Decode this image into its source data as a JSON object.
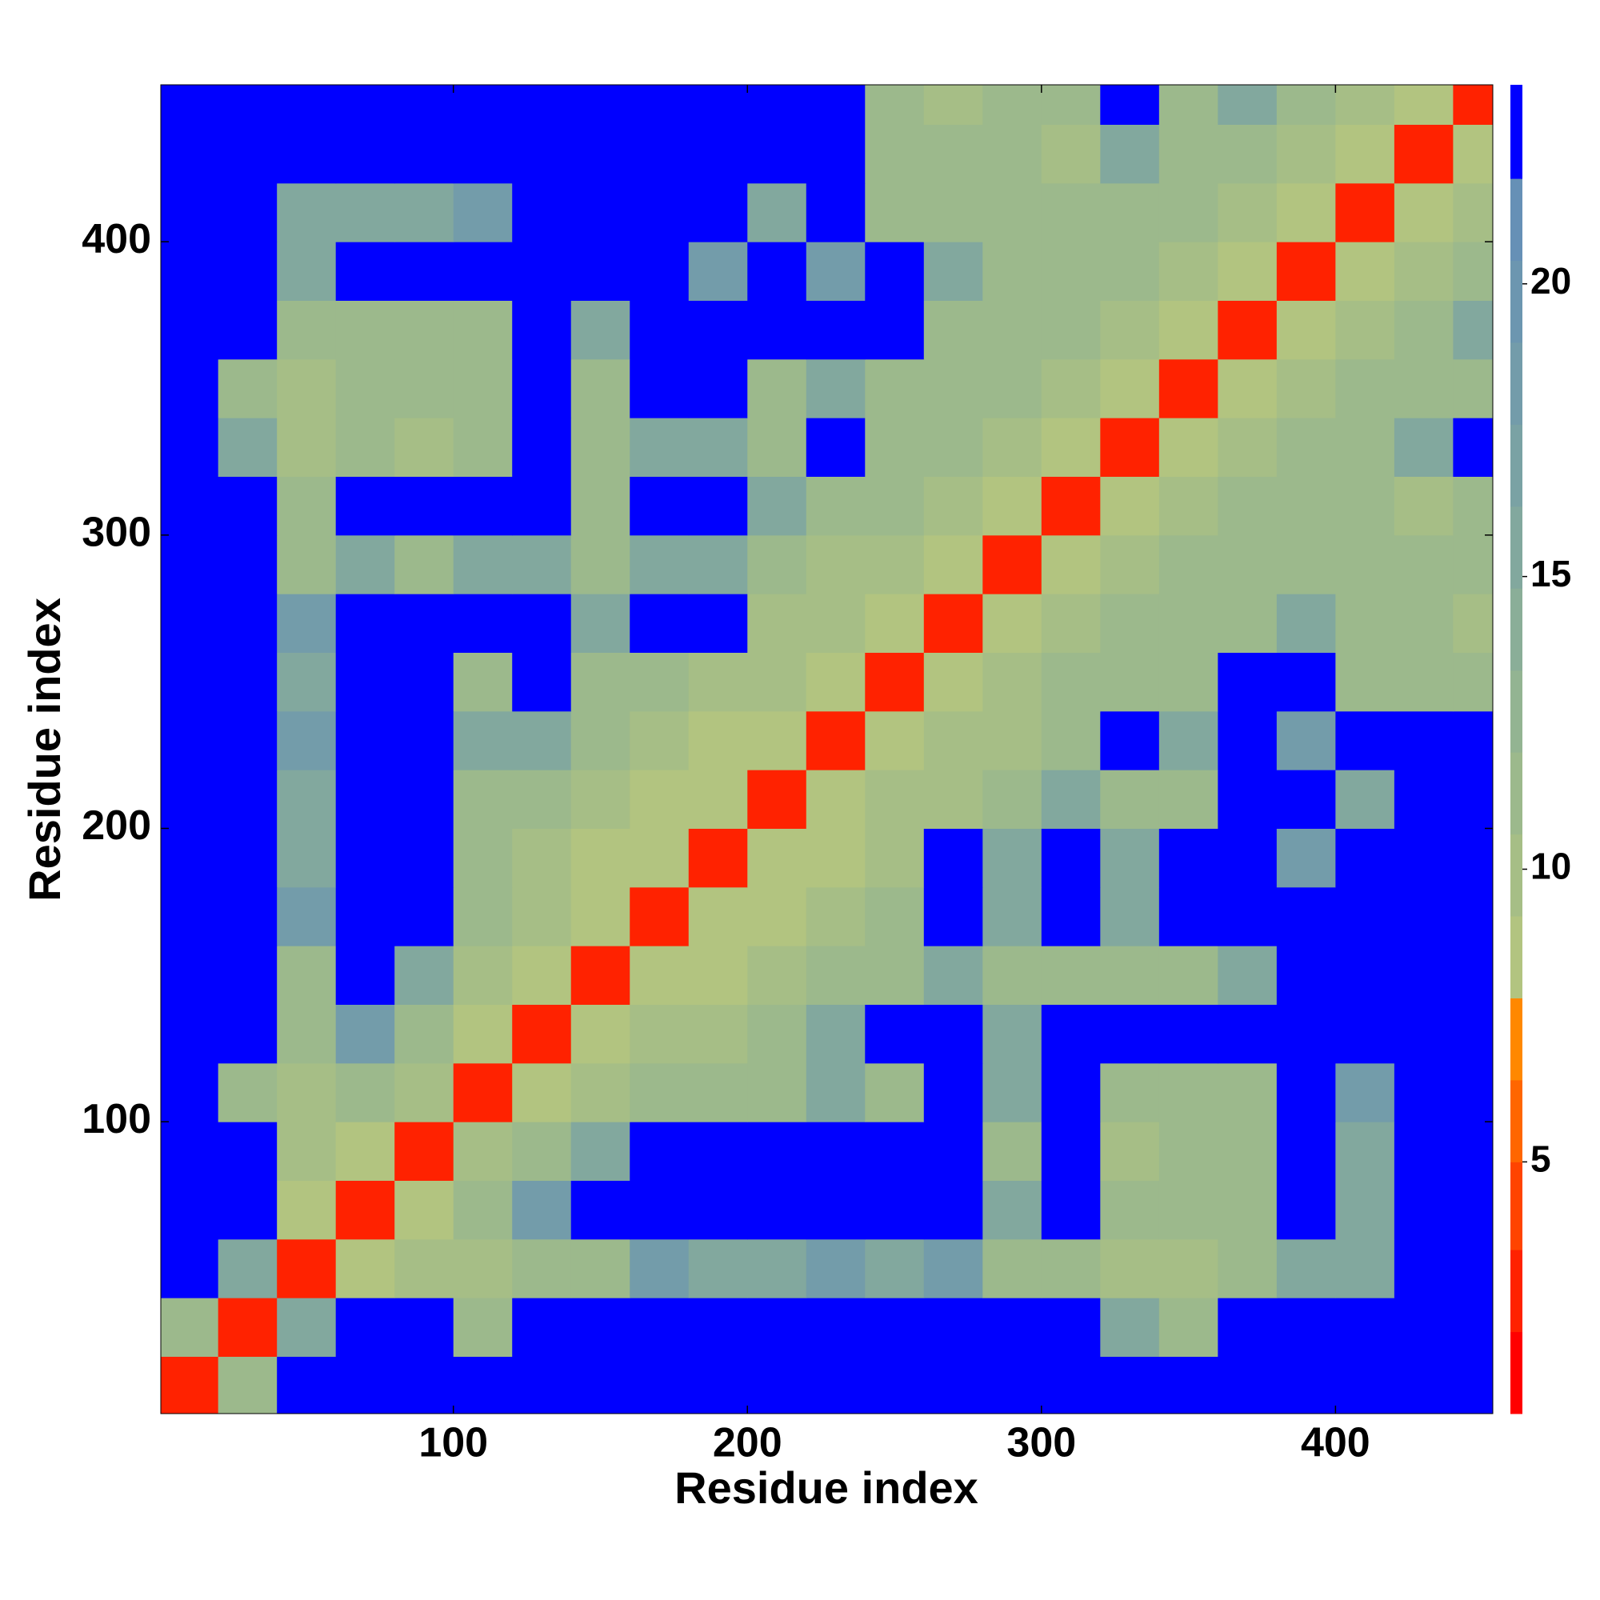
{
  "chart_data": {
    "type": "heatmap",
    "xlabel": "Residue index",
    "ylabel": "Residue index",
    "x": [
      10,
      30,
      50,
      70,
      90,
      110,
      130,
      150,
      170,
      190,
      210,
      230,
      250,
      270,
      290,
      310,
      330,
      350,
      370,
      390,
      410,
      430,
      450
    ],
    "y": [
      10,
      30,
      50,
      70,
      90,
      110,
      130,
      150,
      170,
      190,
      210,
      230,
      250,
      270,
      290,
      310,
      330,
      350,
      370,
      390,
      410,
      430,
      450
    ],
    "xlim": [
      0.5,
      453.5
    ],
    "ylim": [
      0.5,
      453.5
    ],
    "xticks": [
      100,
      200,
      300,
      400
    ],
    "yticks": [
      100,
      200,
      300,
      400
    ],
    "z": [
      [
        3,
        12,
        23,
        23,
        23,
        23,
        23,
        23,
        23,
        23,
        23,
        23,
        23,
        23,
        23,
        23,
        23,
        23,
        23,
        23,
        23,
        23,
        23
      ],
      [
        12,
        3,
        15,
        23,
        23,
        12,
        23,
        23,
        23,
        23,
        23,
        23,
        23,
        23,
        23,
        23,
        15,
        12,
        23,
        23,
        23,
        23,
        23
      ],
      [
        23,
        15,
        3,
        8,
        10,
        10,
        12,
        12,
        18,
        15,
        15,
        18,
        15,
        18,
        12,
        12,
        10,
        10,
        12,
        15,
        15,
        23,
        23
      ],
      [
        23,
        23,
        8,
        3,
        8,
        12,
        18,
        23,
        23,
        23,
        23,
        23,
        23,
        23,
        15,
        23,
        12,
        12,
        12,
        23,
        15,
        23,
        23
      ],
      [
        23,
        23,
        10,
        8,
        3,
        10,
        12,
        15,
        23,
        23,
        23,
        23,
        23,
        23,
        12,
        23,
        10,
        12,
        12,
        23,
        15,
        23,
        23
      ],
      [
        23,
        12,
        10,
        12,
        10,
        3,
        8,
        10,
        12,
        12,
        12,
        15,
        12,
        23,
        15,
        23,
        12,
        12,
        12,
        23,
        18,
        23,
        23
      ],
      [
        23,
        23,
        12,
        18,
        12,
        8,
        3,
        8,
        10,
        10,
        12,
        15,
        23,
        23,
        15,
        23,
        23,
        23,
        23,
        23,
        23,
        23,
        23
      ],
      [
        23,
        23,
        12,
        23,
        15,
        10,
        8,
        3,
        8,
        8,
        10,
        12,
        12,
        15,
        12,
        12,
        12,
        12,
        15,
        23,
        23,
        23,
        23
      ],
      [
        23,
        23,
        18,
        23,
        23,
        12,
        10,
        8,
        3,
        8,
        8,
        10,
        12,
        23,
        15,
        23,
        15,
        23,
        23,
        23,
        23,
        23,
        23
      ],
      [
        23,
        23,
        15,
        23,
        23,
        12,
        10,
        8,
        8,
        3,
        8,
        8,
        10,
        23,
        15,
        23,
        15,
        23,
        23,
        18,
        23,
        23,
        23
      ],
      [
        23,
        23,
        15,
        23,
        23,
        12,
        12,
        10,
        8,
        8,
        3,
        8,
        10,
        10,
        12,
        15,
        12,
        12,
        23,
        23,
        15,
        23,
        23
      ],
      [
        23,
        23,
        18,
        23,
        23,
        15,
        15,
        12,
        10,
        8,
        8,
        3,
        8,
        10,
        10,
        12,
        23,
        15,
        23,
        18,
        23,
        23,
        23
      ],
      [
        23,
        23,
        15,
        23,
        23,
        12,
        23,
        12,
        12,
        10,
        10,
        8,
        3,
        8,
        10,
        12,
        12,
        12,
        23,
        23,
        12,
        12,
        12
      ],
      [
        23,
        23,
        18,
        23,
        23,
        23,
        23,
        15,
        23,
        23,
        10,
        10,
        8,
        3,
        8,
        10,
        12,
        12,
        12,
        15,
        12,
        12,
        10
      ],
      [
        23,
        23,
        12,
        15,
        12,
        15,
        15,
        12,
        15,
        15,
        12,
        10,
        10,
        8,
        3,
        8,
        10,
        12,
        12,
        12,
        12,
        12,
        12
      ],
      [
        23,
        23,
        12,
        23,
        23,
        23,
        23,
        12,
        23,
        23,
        15,
        12,
        12,
        10,
        8,
        3,
        8,
        10,
        12,
        12,
        12,
        10,
        12
      ],
      [
        23,
        15,
        10,
        12,
        10,
        12,
        23,
        12,
        15,
        15,
        12,
        23,
        12,
        12,
        10,
        8,
        3,
        8,
        10,
        12,
        12,
        15,
        23
      ],
      [
        23,
        12,
        10,
        12,
        12,
        12,
        23,
        12,
        23,
        23,
        12,
        15,
        12,
        12,
        12,
        10,
        8,
        3,
        8,
        10,
        12,
        12,
        12
      ],
      [
        23,
        23,
        12,
        12,
        12,
        12,
        23,
        15,
        23,
        23,
        23,
        23,
        23,
        12,
        12,
        12,
        10,
        8,
        3,
        8,
        10,
        12,
        15
      ],
      [
        23,
        23,
        15,
        23,
        23,
        23,
        23,
        23,
        23,
        18,
        23,
        18,
        23,
        15,
        12,
        12,
        12,
        10,
        8,
        3,
        8,
        10,
        12
      ],
      [
        23,
        23,
        15,
        15,
        15,
        18,
        23,
        23,
        23,
        23,
        15,
        23,
        12,
        12,
        12,
        12,
        12,
        12,
        10,
        8,
        3,
        8,
        10
      ],
      [
        23,
        23,
        23,
        23,
        23,
        23,
        23,
        23,
        23,
        23,
        23,
        23,
        12,
        12,
        12,
        10,
        15,
        12,
        12,
        10,
        8,
        3,
        8
      ],
      [
        23,
        23,
        23,
        23,
        23,
        23,
        23,
        23,
        23,
        23,
        23,
        23,
        12,
        10,
        12,
        12,
        23,
        12,
        15,
        12,
        10,
        8,
        3
      ]
    ],
    "colorscale": {
      "levels": [
        0.7,
        2.1,
        3.5,
        5.0,
        6.4,
        7.8,
        9.2,
        10.6,
        12.0,
        13.4,
        14.8,
        16.2,
        17.6,
        19.0,
        20.4,
        21.8,
        23.4
      ],
      "colors": [
        "#ff0000",
        "#ff2200",
        "#ff4400",
        "#ff6600",
        "#ff8800",
        "#b2c480",
        "#a6be86",
        "#9cb98c",
        "#93b492",
        "#8aae98",
        "#82a89e",
        "#7aa2a4",
        "#739caa",
        "#6c96b0",
        "#6690b6",
        "#0000ff"
      ]
    },
    "zticks": [
      5,
      10,
      15,
      20
    ]
  }
}
